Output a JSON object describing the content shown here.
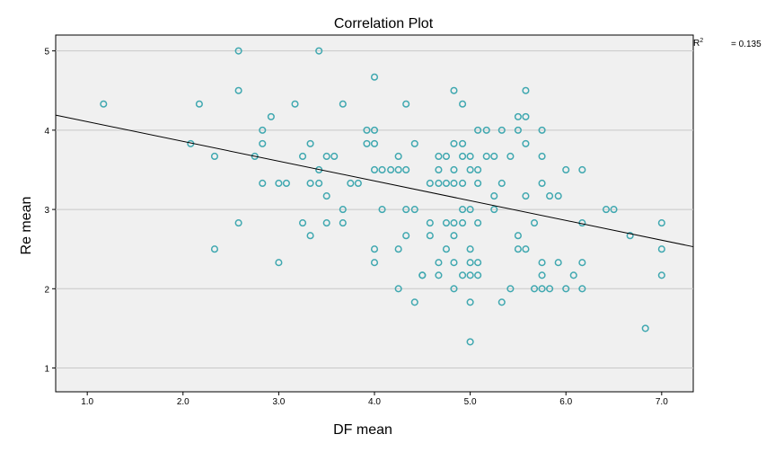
{
  "chart_data": {
    "type": "scatter",
    "title": "Correlation Plot",
    "xlabel": "DF mean",
    "ylabel": "Re mean",
    "xlim": [
      0.67,
      7.33
    ],
    "ylim": [
      0.7,
      5.2
    ],
    "xticks": [
      1.0,
      2.0,
      3.0,
      4.0,
      5.0,
      6.0,
      7.0
    ],
    "xtick_labels": [
      "1.0",
      "2.0",
      "3.0",
      "4.0",
      "5.0",
      "6.0",
      "7.0"
    ],
    "yticks": [
      1,
      2,
      3,
      4,
      5
    ],
    "ytick_labels": [
      "1",
      "2",
      "3",
      "4",
      "5"
    ],
    "grid": "horizontal",
    "r2_label": "R",
    "r2_sup": "2",
    "r2_value": "= 0.135",
    "colors": {
      "point": "#40a8b0",
      "line": "#000000",
      "background": "#f0f0f0",
      "grid": "#c8c8c8"
    },
    "fit_line": {
      "x": [
        0.67,
        7.33
      ],
      "y": [
        4.19,
        2.53
      ]
    },
    "points": [
      [
        1.17,
        4.33
      ],
      [
        2.08,
        3.83
      ],
      [
        2.17,
        4.33
      ],
      [
        2.33,
        3.67
      ],
      [
        2.33,
        2.5
      ],
      [
        2.58,
        5.0
      ],
      [
        2.58,
        4.5
      ],
      [
        2.58,
        2.83
      ],
      [
        2.75,
        3.67
      ],
      [
        2.83,
        4.0
      ],
      [
        2.83,
        3.83
      ],
      [
        2.83,
        3.33
      ],
      [
        2.92,
        4.17
      ],
      [
        3.0,
        3.33
      ],
      [
        3.0,
        2.33
      ],
      [
        3.08,
        3.33
      ],
      [
        3.17,
        4.33
      ],
      [
        3.25,
        3.67
      ],
      [
        3.25,
        2.83
      ],
      [
        3.33,
        3.83
      ],
      [
        3.33,
        3.33
      ],
      [
        3.33,
        2.67
      ],
      [
        3.42,
        5.0
      ],
      [
        3.42,
        3.5
      ],
      [
        3.42,
        3.33
      ],
      [
        3.5,
        3.67
      ],
      [
        3.5,
        3.17
      ],
      [
        3.5,
        2.83
      ],
      [
        3.58,
        3.67
      ],
      [
        3.67,
        4.33
      ],
      [
        3.67,
        3.0
      ],
      [
        3.67,
        2.83
      ],
      [
        3.75,
        3.33
      ],
      [
        3.83,
        3.33
      ],
      [
        3.92,
        4.0
      ],
      [
        3.92,
        3.83
      ],
      [
        4.0,
        4.67
      ],
      [
        4.0,
        4.0
      ],
      [
        4.0,
        3.83
      ],
      [
        4.0,
        3.5
      ],
      [
        4.0,
        2.5
      ],
      [
        4.0,
        2.33
      ],
      [
        4.08,
        3.5
      ],
      [
        4.08,
        3.0
      ],
      [
        4.17,
        3.5
      ],
      [
        4.25,
        3.5
      ],
      [
        4.25,
        3.67
      ],
      [
        4.25,
        2.5
      ],
      [
        4.25,
        2.0
      ],
      [
        4.33,
        4.33
      ],
      [
        4.33,
        3.5
      ],
      [
        4.33,
        3.0
      ],
      [
        4.33,
        2.67
      ],
      [
        4.42,
        3.83
      ],
      [
        4.42,
        3.0
      ],
      [
        4.42,
        1.83
      ],
      [
        4.5,
        2.17
      ],
      [
        4.5,
        2.17
      ],
      [
        4.58,
        3.33
      ],
      [
        4.58,
        2.83
      ],
      [
        4.58,
        2.67
      ],
      [
        4.67,
        3.67
      ],
      [
        4.67,
        3.5
      ],
      [
        4.67,
        3.33
      ],
      [
        4.67,
        2.33
      ],
      [
        4.67,
        2.17
      ],
      [
        4.75,
        3.67
      ],
      [
        4.75,
        3.33
      ],
      [
        4.75,
        2.83
      ],
      [
        4.75,
        2.5
      ],
      [
        4.83,
        4.5
      ],
      [
        4.83,
        3.83
      ],
      [
        4.83,
        3.5
      ],
      [
        4.83,
        3.33
      ],
      [
        4.83,
        2.83
      ],
      [
        4.83,
        2.67
      ],
      [
        4.83,
        2.33
      ],
      [
        4.83,
        2.0
      ],
      [
        4.92,
        4.33
      ],
      [
        4.92,
        3.83
      ],
      [
        4.92,
        3.67
      ],
      [
        4.92,
        3.33
      ],
      [
        4.92,
        3.0
      ],
      [
        4.92,
        2.83
      ],
      [
        4.92,
        2.17
      ],
      [
        5.0,
        3.67
      ],
      [
        5.0,
        3.5
      ],
      [
        5.0,
        3.0
      ],
      [
        5.0,
        2.5
      ],
      [
        5.0,
        2.33
      ],
      [
        5.0,
        2.17
      ],
      [
        5.0,
        1.83
      ],
      [
        5.0,
        1.33
      ],
      [
        5.08,
        4.0
      ],
      [
        5.08,
        3.5
      ],
      [
        5.08,
        3.33
      ],
      [
        5.08,
        2.83
      ],
      [
        5.08,
        2.33
      ],
      [
        5.08,
        2.17
      ],
      [
        5.17,
        4.0
      ],
      [
        5.17,
        3.67
      ],
      [
        5.25,
        3.67
      ],
      [
        5.25,
        3.17
      ],
      [
        5.25,
        3.0
      ],
      [
        5.33,
        4.0
      ],
      [
        5.33,
        3.33
      ],
      [
        5.33,
        1.83
      ],
      [
        5.42,
        3.67
      ],
      [
        5.42,
        2.0
      ],
      [
        5.5,
        4.17
      ],
      [
        5.5,
        4.0
      ],
      [
        5.5,
        2.67
      ],
      [
        5.5,
        2.5
      ],
      [
        5.58,
        4.5
      ],
      [
        5.58,
        4.17
      ],
      [
        5.58,
        3.83
      ],
      [
        5.58,
        3.17
      ],
      [
        5.58,
        2.5
      ],
      [
        5.67,
        2.83
      ],
      [
        5.67,
        2.0
      ],
      [
        5.75,
        4.0
      ],
      [
        5.75,
        3.67
      ],
      [
        5.75,
        3.33
      ],
      [
        5.75,
        2.33
      ],
      [
        5.75,
        2.17
      ],
      [
        5.75,
        2.0
      ],
      [
        5.83,
        3.17
      ],
      [
        5.83,
        2.0
      ],
      [
        5.92,
        3.17
      ],
      [
        5.92,
        2.33
      ],
      [
        6.0,
        3.5
      ],
      [
        6.0,
        2.0
      ],
      [
        6.08,
        2.17
      ],
      [
        6.17,
        3.5
      ],
      [
        6.17,
        2.83
      ],
      [
        6.17,
        2.33
      ],
      [
        6.17,
        2.0
      ],
      [
        6.42,
        3.0
      ],
      [
        6.5,
        3.0
      ],
      [
        6.67,
        2.67
      ],
      [
        6.83,
        1.5
      ],
      [
        7.0,
        2.83
      ],
      [
        7.0,
        2.5
      ],
      [
        7.0,
        2.17
      ]
    ]
  }
}
